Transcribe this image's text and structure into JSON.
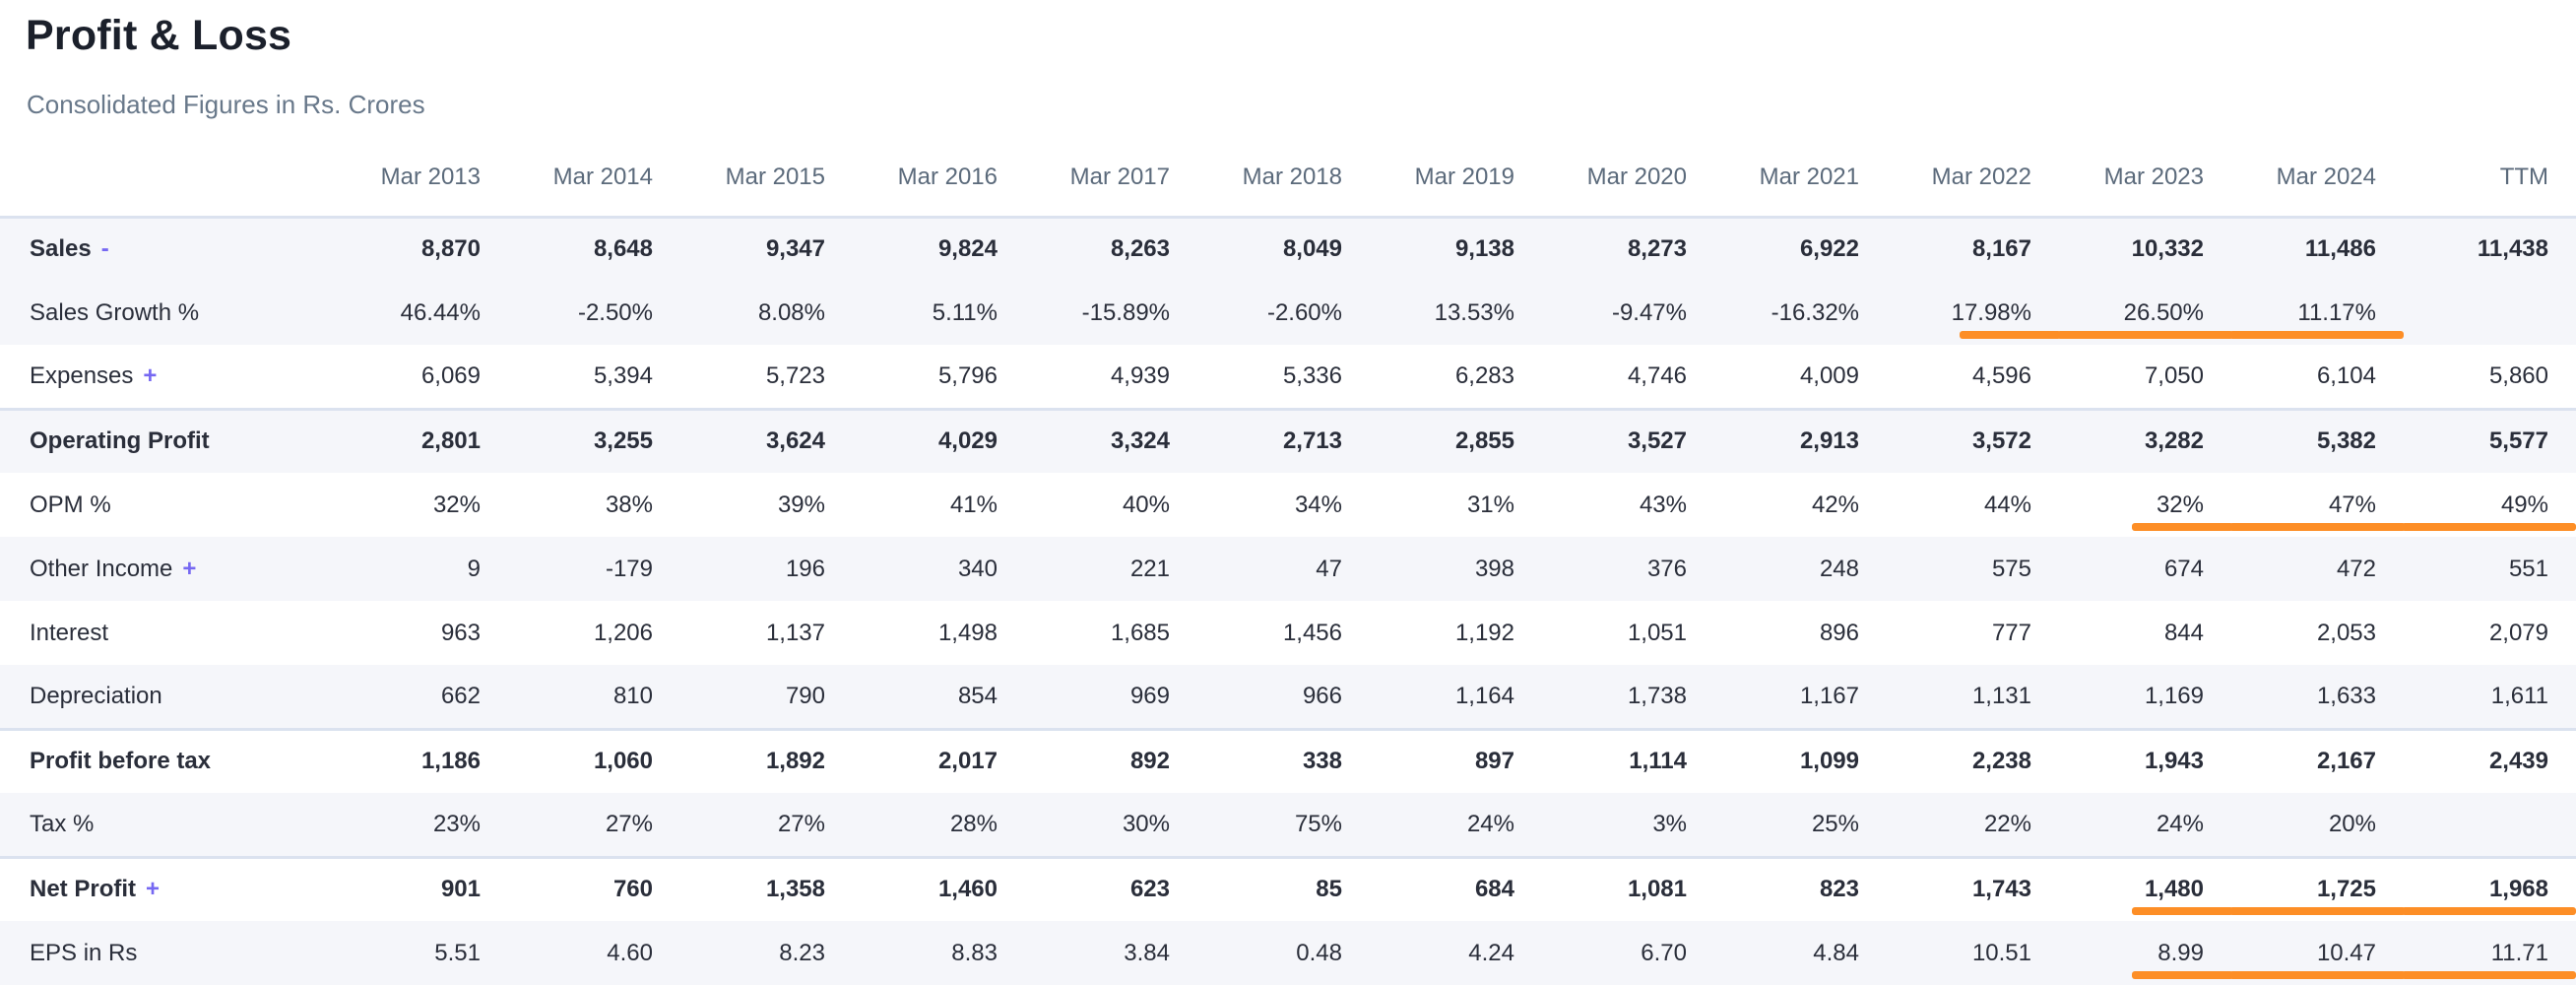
{
  "header": {
    "title": "Profit & Loss",
    "subtitle": "Consolidated Figures in Rs. Crores"
  },
  "colors": {
    "accent_purple": "#7668f2",
    "underline_orange": "#fd8e26",
    "stripe_bg": "#f5f6fa",
    "strong_border": "#dbe2ef",
    "text_dark": "#2a2e3a",
    "header_text": "#5b6a7b"
  },
  "table": {
    "columns": [
      "Mar 2013",
      "Mar 2014",
      "Mar 2015",
      "Mar 2016",
      "Mar 2017",
      "Mar 2018",
      "Mar 2019",
      "Mar 2020",
      "Mar 2021",
      "Mar 2022",
      "Mar 2023",
      "Mar 2024",
      "TTM"
    ],
    "rows": [
      {
        "label": "Sales",
        "affix": "-",
        "bold": true,
        "shaded": true,
        "values": [
          "8,870",
          "8,648",
          "9,347",
          "9,824",
          "8,263",
          "8,049",
          "9,138",
          "8,273",
          "6,922",
          "8,167",
          "10,332",
          "11,486",
          "11,438"
        ],
        "underline": []
      },
      {
        "label": "Sales Growth %",
        "affix": "",
        "bold": false,
        "shaded": true,
        "values": [
          "46.44%",
          "-2.50%",
          "8.08%",
          "5.11%",
          "-15.89%",
          "-2.60%",
          "13.53%",
          "-9.47%",
          "-16.32%",
          "17.98%",
          "26.50%",
          "11.17%",
          ""
        ],
        "underline": [
          9,
          10,
          11
        ]
      },
      {
        "label": "Expenses",
        "affix": "+",
        "bold": false,
        "shaded": false,
        "values": [
          "6,069",
          "5,394",
          "5,723",
          "5,796",
          "4,939",
          "5,336",
          "6,283",
          "4,746",
          "4,009",
          "4,596",
          "7,050",
          "6,104",
          "5,860"
        ],
        "underline": []
      },
      {
        "label": "Operating Profit",
        "affix": "",
        "bold": true,
        "shaded": true,
        "values": [
          "2,801",
          "3,255",
          "3,624",
          "4,029",
          "3,324",
          "2,713",
          "2,855",
          "3,527",
          "2,913",
          "3,572",
          "3,282",
          "5,382",
          "5,577"
        ],
        "underline": []
      },
      {
        "label": "OPM %",
        "affix": "",
        "bold": false,
        "shaded": false,
        "values": [
          "32%",
          "38%",
          "39%",
          "41%",
          "40%",
          "34%",
          "31%",
          "43%",
          "42%",
          "44%",
          "32%",
          "47%",
          "49%"
        ],
        "underline": [
          10,
          11,
          12
        ]
      },
      {
        "label": "Other Income",
        "affix": "+",
        "bold": false,
        "shaded": true,
        "values": [
          "9",
          "-179",
          "196",
          "340",
          "221",
          "47",
          "398",
          "376",
          "248",
          "575",
          "674",
          "472",
          "551"
        ],
        "underline": []
      },
      {
        "label": "Interest",
        "affix": "",
        "bold": false,
        "shaded": false,
        "values": [
          "963",
          "1,206",
          "1,137",
          "1,498",
          "1,685",
          "1,456",
          "1,192",
          "1,051",
          "896",
          "777",
          "844",
          "2,053",
          "2,079"
        ],
        "underline": []
      },
      {
        "label": "Depreciation",
        "affix": "",
        "bold": false,
        "shaded": true,
        "values": [
          "662",
          "810",
          "790",
          "854",
          "969",
          "966",
          "1,164",
          "1,738",
          "1,167",
          "1,131",
          "1,169",
          "1,633",
          "1,611"
        ],
        "underline": []
      },
      {
        "label": "Profit before tax",
        "affix": "",
        "bold": true,
        "shaded": false,
        "values": [
          "1,186",
          "1,060",
          "1,892",
          "2,017",
          "892",
          "338",
          "897",
          "1,114",
          "1,099",
          "2,238",
          "1,943",
          "2,167",
          "2,439"
        ],
        "underline": []
      },
      {
        "label": "Tax %",
        "affix": "",
        "bold": false,
        "shaded": true,
        "values": [
          "23%",
          "27%",
          "27%",
          "28%",
          "30%",
          "75%",
          "24%",
          "3%",
          "25%",
          "22%",
          "24%",
          "20%",
          ""
        ],
        "underline": []
      },
      {
        "label": "Net Profit",
        "affix": "+",
        "bold": true,
        "shaded": false,
        "values": [
          "901",
          "760",
          "1,358",
          "1,460",
          "623",
          "85",
          "684",
          "1,081",
          "823",
          "1,743",
          "1,480",
          "1,725",
          "1,968"
        ],
        "underline": [
          10,
          11,
          12
        ]
      },
      {
        "label": "EPS in Rs",
        "affix": "",
        "bold": false,
        "shaded": true,
        "values": [
          "5.51",
          "4.60",
          "8.23",
          "8.83",
          "3.84",
          "0.48",
          "4.24",
          "6.70",
          "4.84",
          "10.51",
          "8.99",
          "10.47",
          "11.71"
        ],
        "underline": [
          10,
          11,
          12
        ]
      }
    ]
  }
}
